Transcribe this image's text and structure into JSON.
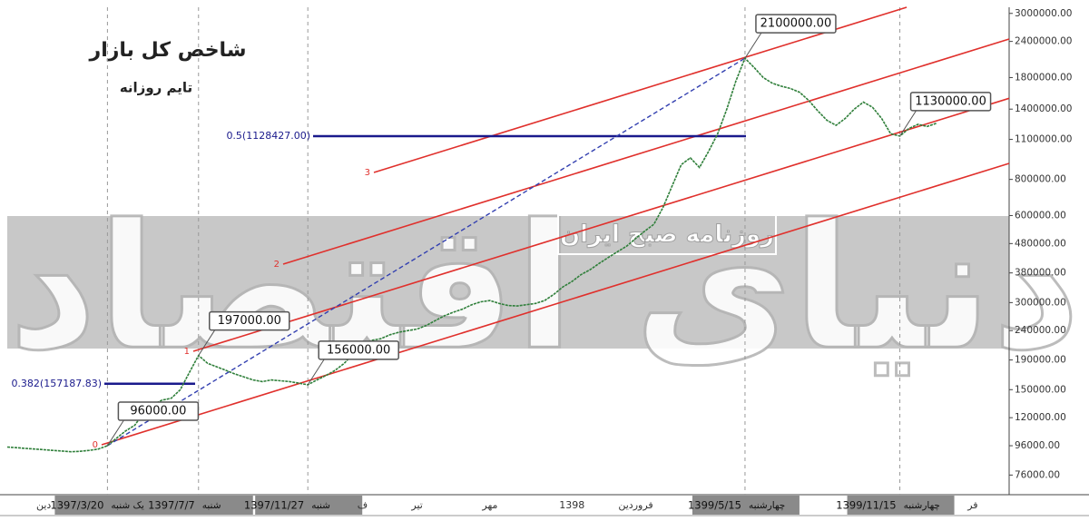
{
  "chart_data": {
    "type": "line",
    "title": "شاخص کل بازار",
    "subtitle": "تایم روزانه",
    "watermark": {
      "logo": "دنیای اقتصاد",
      "tagline": "روزنامه صبح ایران"
    },
    "log_scale": true,
    "color": "#2f7f3a",
    "ylim": [
      65000,
      3150000
    ],
    "yticks": [
      {
        "value": 3000000,
        "label": "3000000.00"
      },
      {
        "value": 2400000,
        "label": "2400000.00"
      },
      {
        "value": 1800000,
        "label": "1800000.00"
      },
      {
        "value": 1400000,
        "label": "1400000.00"
      },
      {
        "value": 1100000,
        "label": "1100000.00"
      },
      {
        "value": 800000,
        "label": "800000.00"
      },
      {
        "value": 600000,
        "label": "600000.00"
      },
      {
        "value": 480000,
        "label": "480000.00"
      },
      {
        "value": 380000,
        "label": "380000.00"
      },
      {
        "value": 300000,
        "label": "300000.00"
      },
      {
        "value": 240000,
        "label": "240000.00"
      },
      {
        "value": 190000,
        "label": "190000.00"
      },
      {
        "value": 150000,
        "label": "150000.00"
      },
      {
        "value": 120000,
        "label": "120000.00"
      },
      {
        "value": 96000,
        "label": "96000.00"
      },
      {
        "value": 76000,
        "label": "76000.00"
      }
    ],
    "categories": [
      null,
      null,
      null,
      null,
      "دین",
      null,
      null,
      null,
      null,
      null,
      null,
      "1397/3/20",
      null,
      null,
      null,
      null,
      null,
      null,
      null,
      null,
      null,
      "1397/7/7",
      null,
      null,
      null,
      null,
      null,
      null,
      null,
      null,
      null,
      null,
      null,
      "1397/11/27",
      null,
      null,
      null,
      null,
      null,
      "ف",
      null,
      null,
      null,
      null,
      null,
      "تیر",
      null,
      null,
      null,
      null,
      null,
      null,
      null,
      "مهر",
      null,
      null,
      null,
      null,
      null,
      null,
      null,
      null,
      "1398",
      null,
      null,
      null,
      null,
      null,
      null,
      "فروردین",
      null,
      null,
      null,
      null,
      null,
      null,
      null,
      null,
      null,
      null,
      null,
      "1399/5/15",
      null,
      null,
      null,
      null,
      null,
      null,
      null,
      null,
      null,
      null,
      null,
      null,
      null,
      null,
      null,
      null,
      "1399/11/15",
      null,
      null,
      null,
      null,
      null,
      null,
      null,
      "فر",
      null,
      null,
      null,
      null
    ],
    "weekdays": [
      null,
      null,
      null,
      null,
      null,
      null,
      null,
      null,
      null,
      null,
      null,
      "یک شنبه",
      null,
      null,
      null,
      null,
      null,
      null,
      null,
      null,
      null,
      "شنبه",
      null,
      null,
      null,
      null,
      null,
      null,
      null,
      null,
      null,
      null,
      null,
      "شنبه",
      null,
      null,
      null,
      null,
      null,
      null,
      null,
      null,
      null,
      null,
      null,
      null,
      null,
      null,
      null,
      null,
      null,
      null,
      null,
      null,
      null,
      null,
      null,
      null,
      null,
      null,
      null,
      null,
      null,
      null,
      null,
      null,
      null,
      null,
      null,
      null,
      null,
      null,
      null,
      null,
      null,
      null,
      null,
      null,
      null,
      null,
      null,
      "چهارشنبه",
      null,
      null,
      null,
      null,
      null,
      null,
      null,
      null,
      null,
      null,
      null,
      null,
      null,
      null,
      null,
      null,
      "چهارشنبه",
      null,
      null,
      null,
      null,
      null,
      null,
      null,
      null,
      null,
      null,
      null,
      null
    ],
    "values": [
      95000,
      94500,
      94000,
      93500,
      93000,
      92500,
      92000,
      91500,
      91800,
      92500,
      93500,
      96000,
      102000,
      108000,
      113000,
      125000,
      133000,
      138000,
      140000,
      150000,
      172000,
      197000,
      185000,
      180000,
      175000,
      170000,
      166000,
      162000,
      160000,
      162000,
      161000,
      160000,
      158000,
      156000,
      162000,
      168000,
      175000,
      185000,
      200000,
      215000,
      222000,
      225000,
      232000,
      237000,
      240000,
      243000,
      250000,
      260000,
      270000,
      278000,
      285000,
      295000,
      302000,
      305000,
      298000,
      293000,
      292000,
      295000,
      298000,
      305000,
      320000,
      340000,
      355000,
      375000,
      390000,
      410000,
      430000,
      450000,
      470000,
      500000,
      530000,
      560000,
      640000,
      760000,
      900000,
      950000,
      880000,
      1000000,
      1150000,
      1400000,
      1750000,
      2100000,
      1950000,
      1800000,
      1720000,
      1680000,
      1650000,
      1600000,
      1500000,
      1380000,
      1280000,
      1230000,
      1300000,
      1400000,
      1480000,
      1420000,
      1300000,
      1150000,
      1130000,
      1200000,
      1240000,
      1220000,
      1250000,
      null,
      null,
      null,
      null,
      null,
      null,
      null,
      null
    ],
    "value_labels": [
      null,
      null,
      null,
      null,
      null,
      null,
      null,
      null,
      null,
      null,
      null,
      "96000.00",
      null,
      null,
      null,
      null,
      null,
      null,
      null,
      null,
      null,
      "197000.00",
      null,
      null,
      null,
      null,
      null,
      null,
      null,
      null,
      null,
      null,
      null,
      "156000.00",
      null,
      null,
      null,
      null,
      null,
      null,
      null,
      null,
      null,
      null,
      null,
      null,
      null,
      null,
      null,
      null,
      null,
      null,
      null,
      null,
      null,
      null,
      null,
      null,
      null,
      null,
      null,
      null,
      null,
      null,
      null,
      null,
      null,
      null,
      null,
      null,
      null,
      null,
      null,
      null,
      null,
      null,
      null,
      null,
      null,
      null,
      null,
      "2100000.00",
      null,
      null,
      null,
      null,
      null,
      null,
      null,
      null,
      null,
      null,
      null,
      null,
      null,
      null,
      null,
      null,
      "1130000.00",
      null,
      null,
      null,
      null,
      null,
      null,
      null,
      null,
      null,
      null,
      null,
      null
    ],
    "levels": [
      {
        "value": 157187.83,
        "label": "0.382(157187.83)"
      },
      {
        "value": 1128427,
        "label": "0.5(1128427.00)"
      }
    ],
    "channels": [
      0,
      1,
      2,
      3
    ]
  }
}
